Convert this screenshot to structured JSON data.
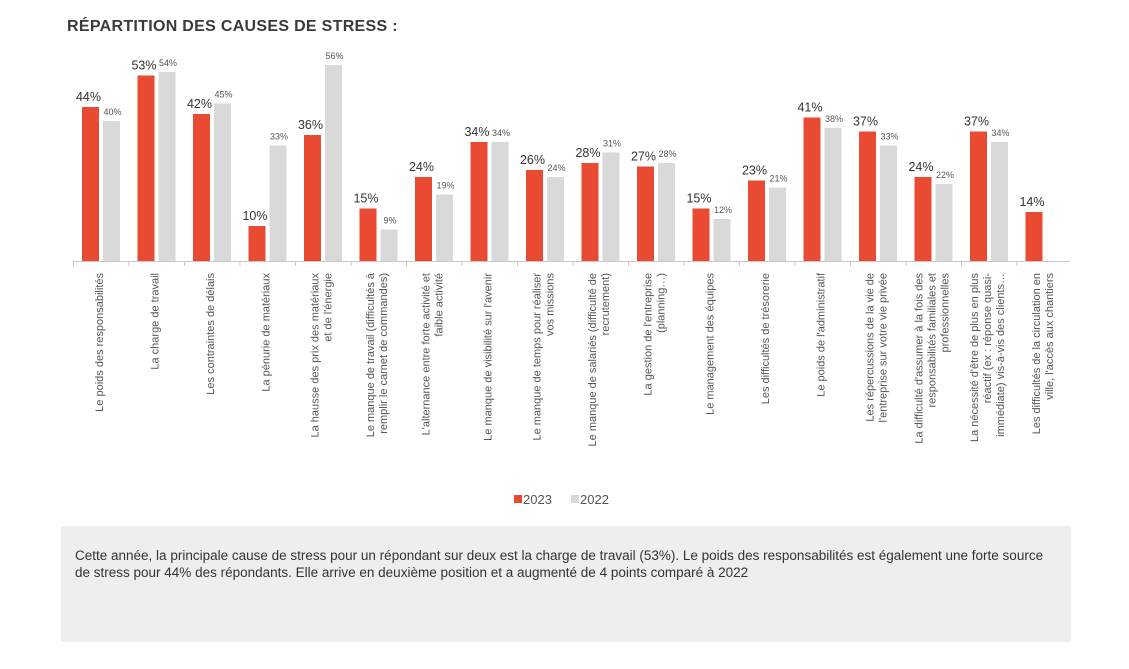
{
  "chart_data": {
    "type": "bar",
    "title": "RÉPARTITION DES CAUSES DE STRESS :",
    "categories": [
      [
        "Le poids des responsabilités"
      ],
      [
        "La charge de travail"
      ],
      [
        "Les contraintes de délais"
      ],
      [
        "La pénurie de matériaux"
      ],
      [
        "La hausse des prix des matériaux",
        "et de l'énergie"
      ],
      [
        "Le manque de travail (difficultés à",
        "remplir le carnet de commandes)"
      ],
      [
        "L'alternance entre forte activité et",
        "faible activité"
      ],
      [
        "Le manque de visibilité sur l'avenir"
      ],
      [
        "Le manque de temps pour réaliser",
        "vos missions"
      ],
      [
        "Le manque de salariés (difficulté de",
        "recrutement)"
      ],
      [
        "La gestion de l'entreprise",
        "(planning…)"
      ],
      [
        "Le management des équipes"
      ],
      [
        "Les difficultés de trésorerie"
      ],
      [
        "Le poids de l'administratif"
      ],
      [
        "Les répercussions de la vie de",
        "l'entreprise sur votre vie privée"
      ],
      [
        "La difficulté d'assumer à la fois des",
        "responsabilités familiales et",
        "professionnelles"
      ],
      [
        "La nécessité d'être de plus en plus",
        "réactif (ex : réponse quasi-",
        "immédiate) vis-à-vis des clients…"
      ],
      [
        "Les difficultés de la circulation en",
        "ville, l'accès aux chantiers"
      ]
    ],
    "series": [
      {
        "name": "2023",
        "color": "#e84a32",
        "values": [
          44,
          53,
          42,
          10,
          36,
          15,
          24,
          34,
          26,
          28,
          27,
          15,
          23,
          41,
          37,
          24,
          37,
          14
        ],
        "labels": [
          "44%",
          "53%",
          "42%",
          "10%",
          "36%",
          "15%",
          "24%",
          "34%",
          "26%",
          "28%",
          "27%",
          "15%",
          "23%",
          "41%",
          "37%",
          "24%",
          "37%",
          "14%"
        ]
      },
      {
        "name": "2022",
        "color": "#d9d9d9",
        "values": [
          40,
          54,
          45,
          33,
          56,
          9,
          19,
          34,
          24,
          31,
          28,
          12,
          21,
          38,
          33,
          22,
          34,
          null
        ],
        "labels": [
          "40%",
          "54%",
          "45%",
          "33%",
          "56%",
          "9%",
          "19%",
          "34%",
          "24%",
          "31%",
          "28%",
          "12%",
          "21%",
          "38%",
          "33%",
          "22%",
          "34%",
          null
        ]
      }
    ],
    "ylim": [
      0,
      56
    ],
    "xlabel": "",
    "ylabel": "",
    "legend": [
      "2023",
      "2022"
    ]
  },
  "note": "Cette année, la principale cause de stress pour un répondant sur deux est la charge de travail (53%). Le poids des responsabilités est également une forte source de stress pour 44% des répondants. Elle arrive en deuxième position et a augmenté de 4 points comparé à 2022"
}
